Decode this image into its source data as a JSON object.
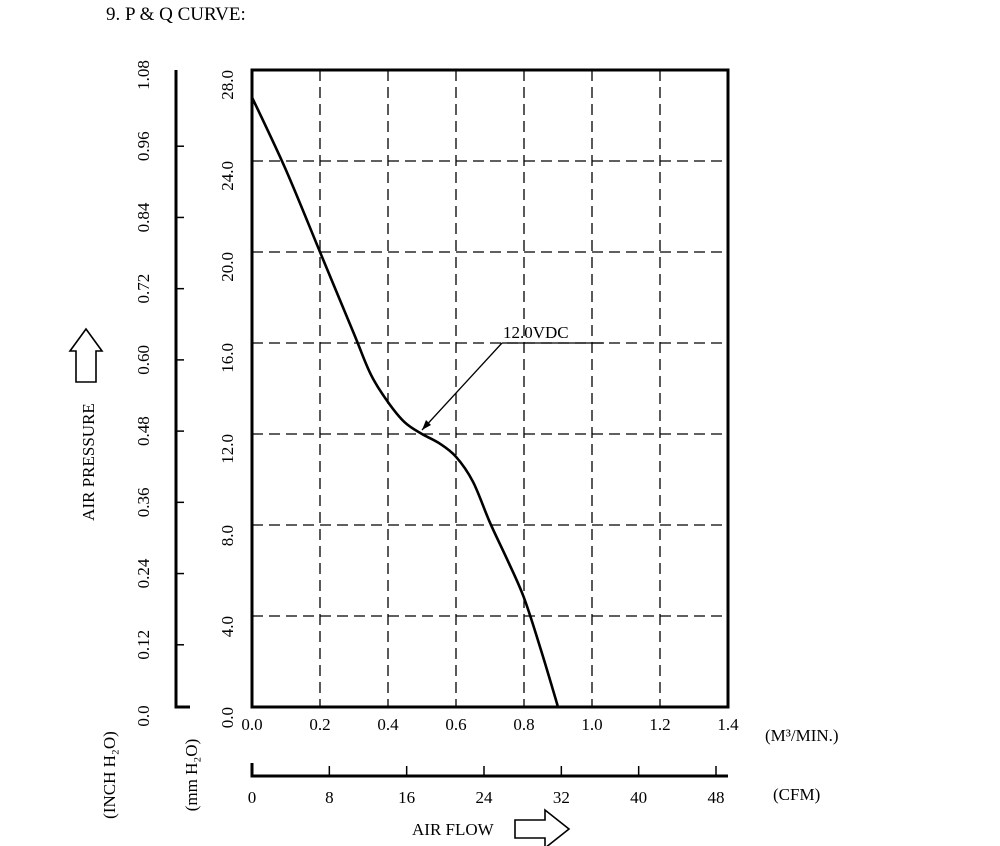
{
  "title": "9. P & Q CURVE:",
  "chart_data": {
    "type": "line",
    "x_unit_primary": "(M³/MIN.)",
    "x_unit_secondary": "(CFM)",
    "xlabel": "AIR FLOW",
    "ylabel": "AIR PRESSURE",
    "y_unit_primary": "(mm H₂O)",
    "y_unit_secondary": "(INCH H₂O)",
    "xlim": [
      0,
      1.4
    ],
    "ylim": [
      0,
      28
    ],
    "x_ticks": [
      "0.0",
      "0.2",
      "0.4",
      "0.6",
      "0.8",
      "1.0",
      "1.2",
      "1.4"
    ],
    "y_ticks": [
      "0.0",
      "4.0",
      "8.0",
      "12.0",
      "16.0",
      "20.0",
      "24.0",
      "28.0"
    ],
    "y_ticks_inch": [
      "0.0",
      "0.12",
      "0.24",
      "0.36",
      "0.48",
      "0.60",
      "0.72",
      "0.84",
      "0.96",
      "1.08"
    ],
    "x_ticks_cfm": [
      "0",
      "8",
      "16",
      "24",
      "32",
      "40",
      "48"
    ],
    "grid": true,
    "series": [
      {
        "name": "12.0VDC",
        "x": [
          0.0,
          0.1,
          0.2,
          0.3,
          0.35,
          0.4,
          0.45,
          0.5,
          0.55,
          0.6,
          0.65,
          0.7,
          0.75,
          0.8,
          0.85,
          0.9
        ],
        "y": [
          26.8,
          23.6,
          20.0,
          16.4,
          14.6,
          13.4,
          12.5,
          12.0,
          11.6,
          11.0,
          9.9,
          8.1,
          6.5,
          4.8,
          2.5,
          0.0
        ]
      }
    ],
    "annotation": {
      "text": "12.0VDC",
      "series": 0
    }
  }
}
